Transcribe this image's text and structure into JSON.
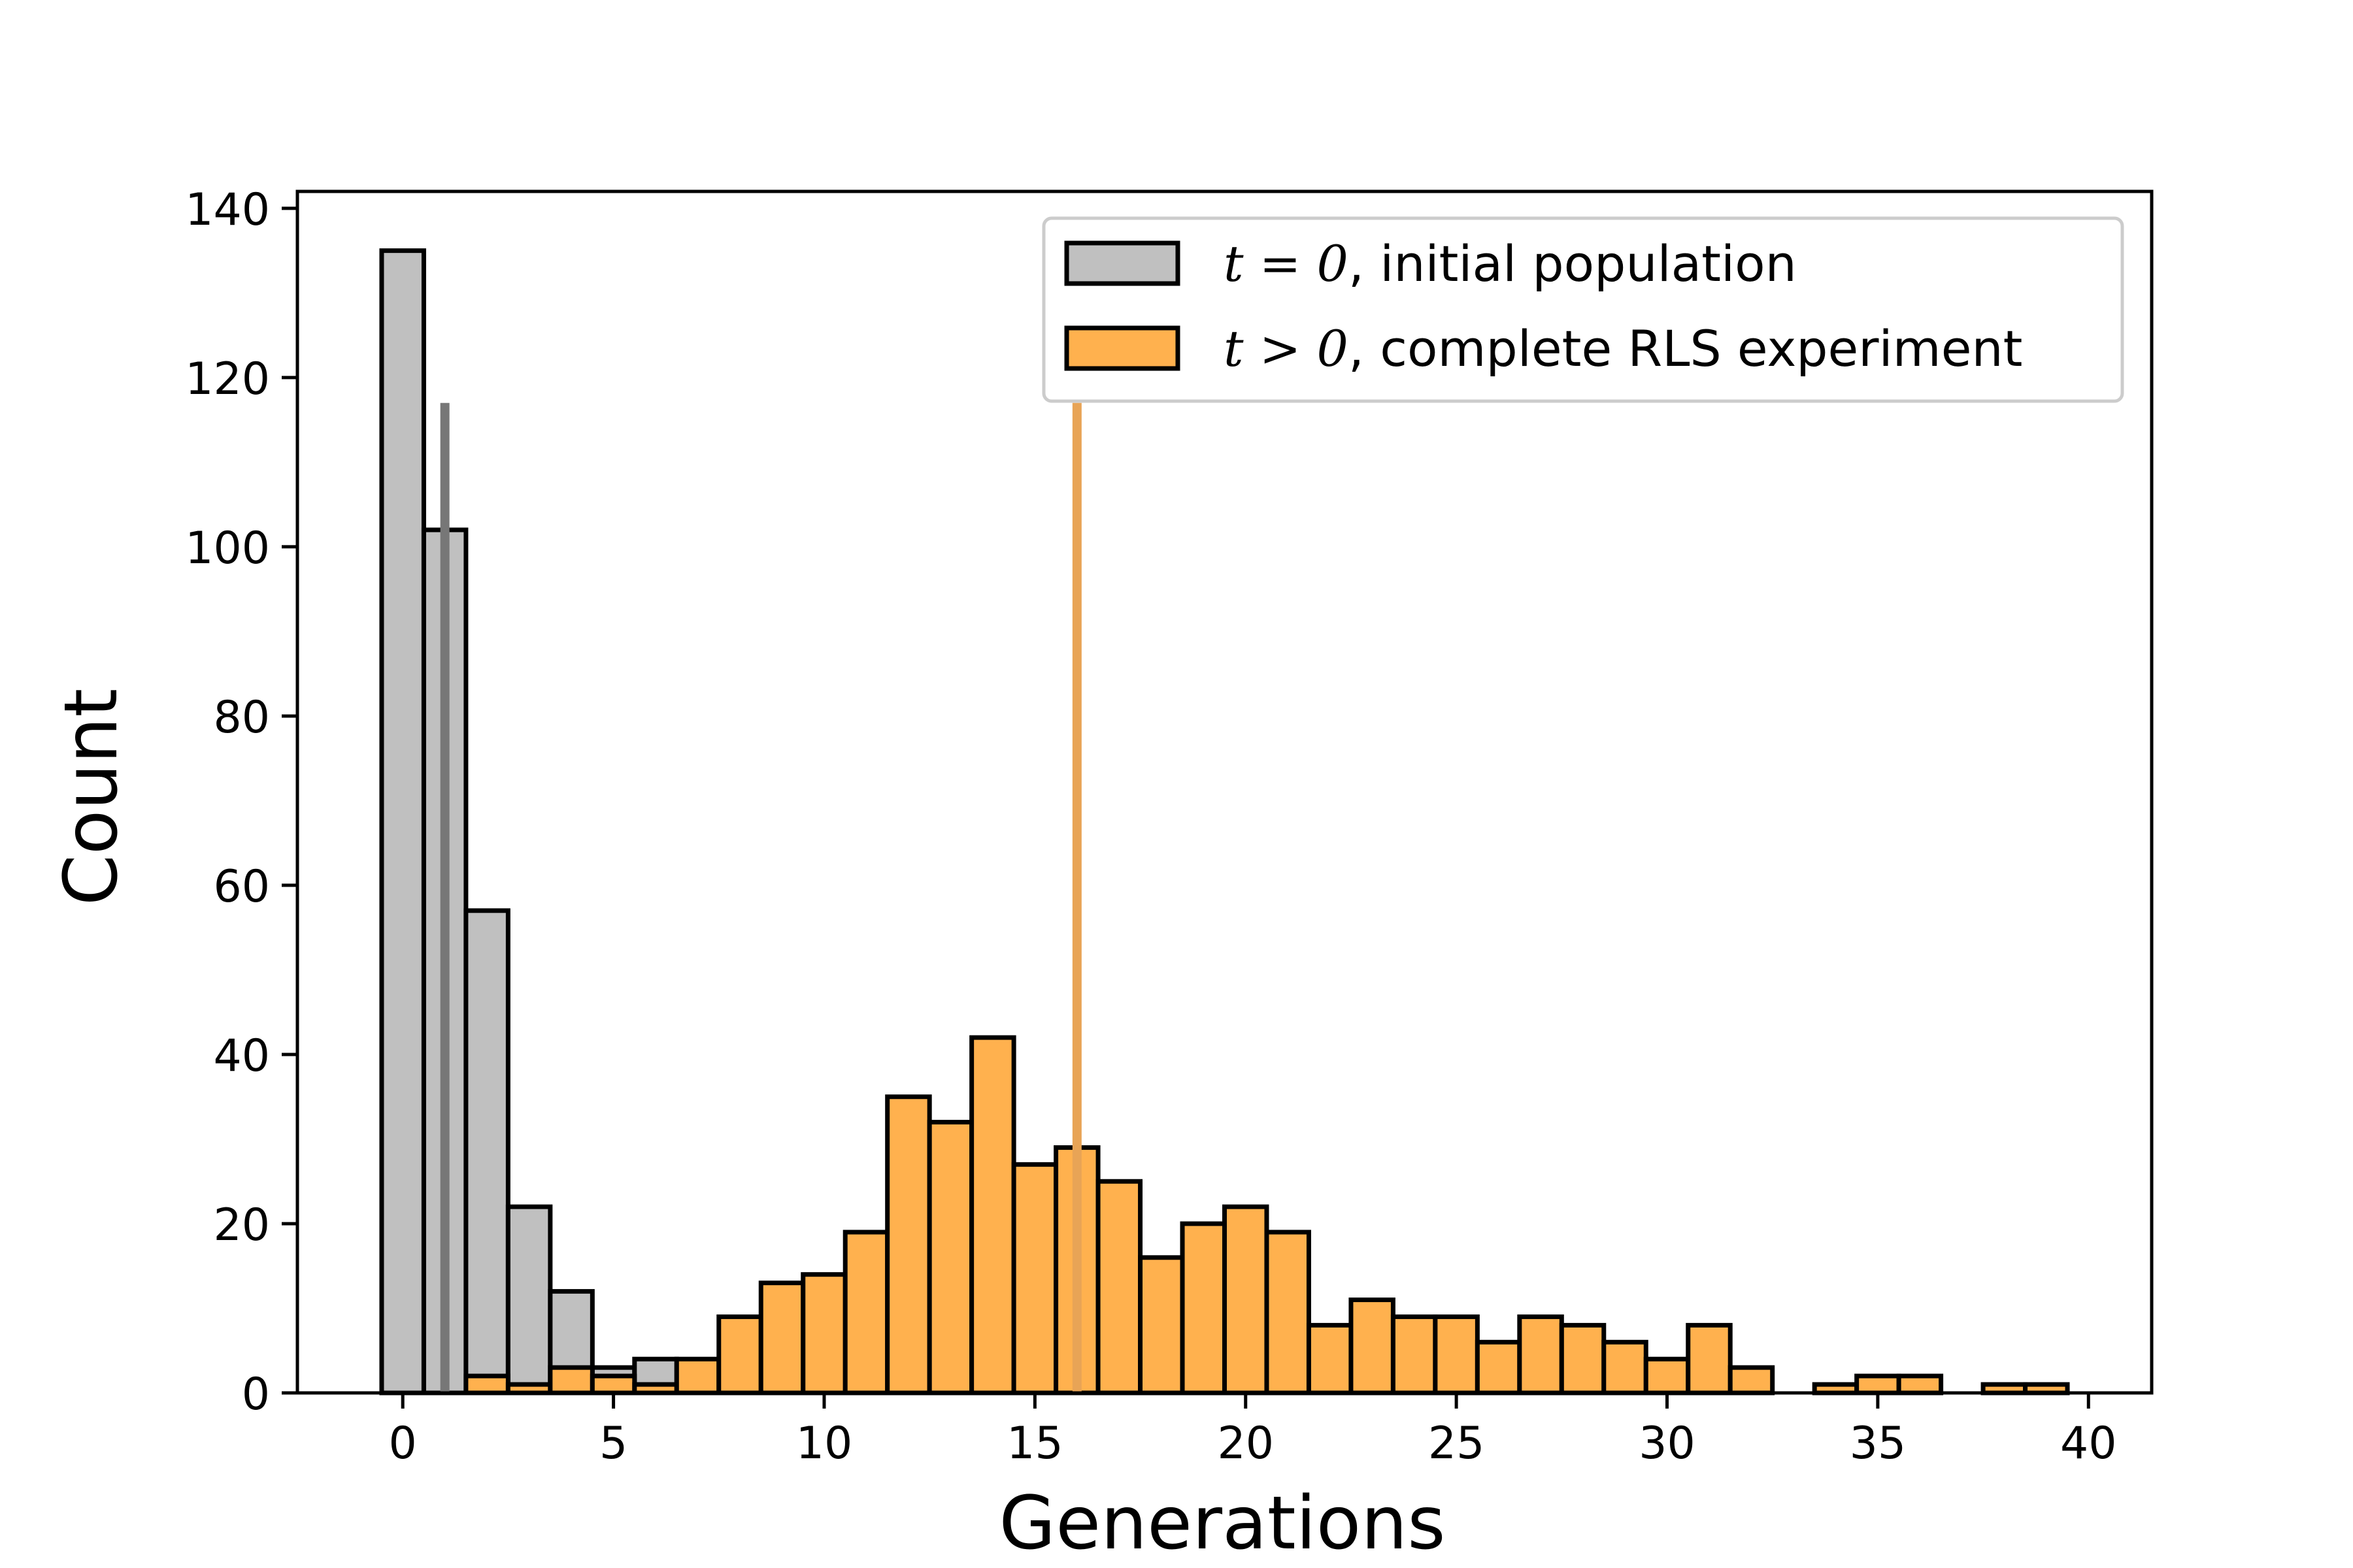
{
  "chart_data": {
    "type": "bar",
    "title": "",
    "xlabel": "Generations",
    "ylabel": "Count",
    "xlim": [
      -2.5,
      41.5
    ],
    "ylim": [
      0,
      142
    ],
    "xticks": [
      0,
      5,
      10,
      15,
      20,
      25,
      30,
      35,
      40
    ],
    "yticks": [
      0,
      20,
      40,
      60,
      80,
      100,
      120,
      140
    ],
    "grid": false,
    "legend_position": "upper right",
    "bin_width": 1,
    "series": [
      {
        "name": "t = 0, initial population",
        "color": "#c0c0c0",
        "x": [
          0,
          1,
          2,
          3,
          4,
          5,
          6
        ],
        "values": [
          135,
          102,
          57,
          22,
          12,
          3,
          4
        ],
        "mean_line": {
          "x": 1,
          "height": 117,
          "color": "#777777"
        }
      },
      {
        "name": "t > 0, complete RLS experiment",
        "color": "#ffb14e",
        "x": [
          1,
          2,
          3,
          4,
          5,
          6,
          7,
          8,
          9,
          10,
          11,
          12,
          13,
          14,
          15,
          16,
          17,
          18,
          19,
          20,
          21,
          22,
          23,
          24,
          25,
          26,
          27,
          28,
          29,
          30,
          31,
          32,
          33,
          34,
          35,
          36,
          37,
          38,
          39
        ],
        "values": [
          0,
          2,
          1,
          3,
          2,
          1,
          4,
          9,
          13,
          14,
          19,
          35,
          32,
          42,
          27,
          29,
          25,
          16,
          20,
          22,
          19,
          8,
          11,
          9,
          9,
          6,
          9,
          8,
          6,
          4,
          8,
          3,
          0,
          1,
          2,
          2,
          0,
          1,
          1
        ],
        "mean_line": {
          "x": 16,
          "height": 117,
          "color": "#e8a456"
        }
      }
    ],
    "legend": [
      {
        "math": "t = 0",
        "text": ", initial population"
      },
      {
        "math": "t > 0",
        "text": ", complete RLS experiment"
      }
    ]
  }
}
